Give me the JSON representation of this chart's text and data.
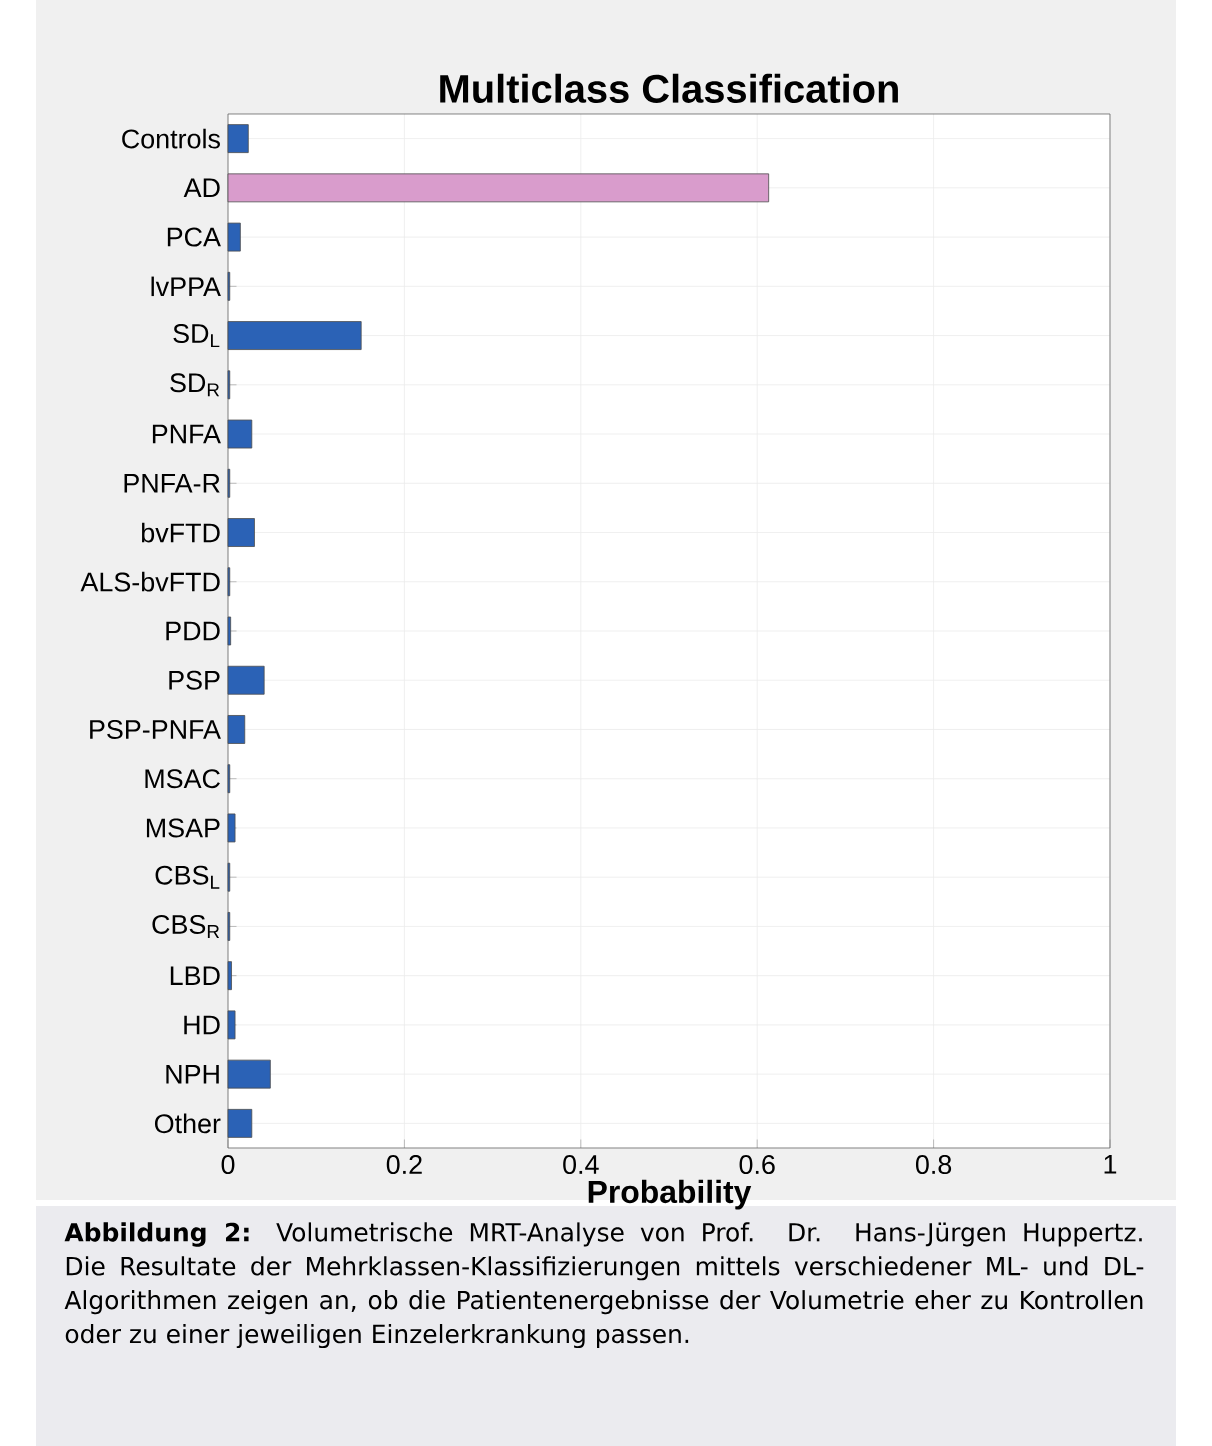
{
  "chart_data": {
    "type": "bar",
    "orientation": "horizontal",
    "title": "Multiclass Classification",
    "xlabel": "Probability",
    "categories": [
      "Controls",
      "AD",
      "PCA",
      "lvPPA",
      "SD$_{L}$",
      "SD$_{R}$",
      "PNFA",
      "PNFA-R",
      "bvFTD",
      "ALS-bvFTD",
      "PDD",
      "PSP",
      "PSP-PNFA",
      "MSAC",
      "MSAP",
      "CBS$_{L}$",
      "CBS$_{R}$",
      "LBD",
      "HD",
      "NPH",
      "Other"
    ],
    "values": [
      0.023,
      0.613,
      0.014,
      0.002,
      0.151,
      0.002,
      0.027,
      0.002,
      0.03,
      0.002,
      0.003,
      0.041,
      0.019,
      0.002,
      0.008,
      0.002,
      0.002,
      0.004,
      0.008,
      0.048,
      0.027
    ],
    "colors": [
      "#2b62b6",
      "#d99ccc",
      "#2b62b6",
      "#2b62b6",
      "#2b62b6",
      "#2b62b6",
      "#2b62b6",
      "#2b62b6",
      "#2b62b6",
      "#2b62b6",
      "#2b62b6",
      "#2b62b6",
      "#2b62b6",
      "#2b62b6",
      "#2b62b6",
      "#2b62b6",
      "#2b62b6",
      "#2b62b6",
      "#2b62b6",
      "#2b62b6",
      "#2b62b6"
    ],
    "xlim": [
      0,
      1
    ],
    "xticks": [
      0,
      0.2,
      0.4,
      0.6,
      0.8,
      1
    ],
    "grid": true,
    "annotations": [
      "**Abbildung 2:** Volumetrische MRT-Analyse von Prof. Dr. Hans-Jürgen Huppertz. Die Resultate der Mehrklassen-Klassifizierungen mittels verschiedener ML- und DL-Algorithmen zeigen an, ob die Patientenergebnisse der Volumetrie eher zu Kontrollen oder zu einer jeweiligen Einzelerkrankung passen."
    ]
  }
}
